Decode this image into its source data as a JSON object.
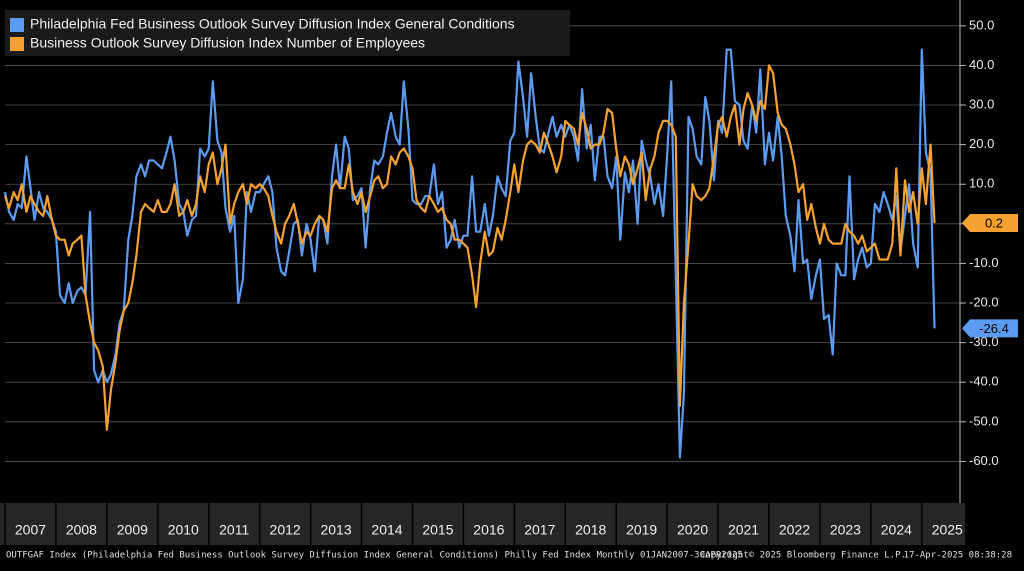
{
  "chart_data": {
    "type": "line",
    "x": [
      2007,
      2007.08,
      2007.17,
      2007.25,
      2007.33,
      2007.42,
      2007.5,
      2007.58,
      2007.67,
      2007.75,
      2007.83,
      2007.92,
      2008,
      2008.08,
      2008.17,
      2008.25,
      2008.33,
      2008.42,
      2008.5,
      2008.58,
      2008.67,
      2008.75,
      2008.83,
      2008.92,
      2009,
      2009.08,
      2009.17,
      2009.25,
      2009.33,
      2009.42,
      2009.5,
      2009.58,
      2009.67,
      2009.75,
      2009.83,
      2009.92,
      2010,
      2010.08,
      2010.17,
      2010.25,
      2010.33,
      2010.42,
      2010.5,
      2010.58,
      2010.67,
      2010.75,
      2010.83,
      2010.92,
      2011,
      2011.08,
      2011.17,
      2011.25,
      2011.33,
      2011.42,
      2011.5,
      2011.58,
      2011.67,
      2011.75,
      2011.83,
      2011.92,
      2012,
      2012.08,
      2012.17,
      2012.25,
      2012.33,
      2012.42,
      2012.5,
      2012.58,
      2012.67,
      2012.75,
      2012.83,
      2012.92,
      2013,
      2013.08,
      2013.17,
      2013.25,
      2013.33,
      2013.42,
      2013.5,
      2013.58,
      2013.67,
      2013.75,
      2013.83,
      2013.92,
      2014,
      2014.08,
      2014.17,
      2014.25,
      2014.33,
      2014.42,
      2014.5,
      2014.58,
      2014.67,
      2014.75,
      2014.83,
      2014.92,
      2015,
      2015.08,
      2015.17,
      2015.25,
      2015.33,
      2015.42,
      2015.5,
      2015.58,
      2015.67,
      2015.75,
      2015.83,
      2015.92,
      2016,
      2016.08,
      2016.17,
      2016.25,
      2016.33,
      2016.42,
      2016.5,
      2016.58,
      2016.67,
      2016.75,
      2016.83,
      2016.92,
      2017,
      2017.08,
      2017.17,
      2017.25,
      2017.33,
      2017.42,
      2017.5,
      2017.58,
      2017.67,
      2017.75,
      2017.83,
      2017.92,
      2018,
      2018.08,
      2018.17,
      2018.25,
      2018.33,
      2018.42,
      2018.5,
      2018.58,
      2018.67,
      2018.75,
      2018.83,
      2018.92,
      2019,
      2019.08,
      2019.17,
      2019.25,
      2019.33,
      2019.42,
      2019.5,
      2019.58,
      2019.67,
      2019.75,
      2019.83,
      2019.92,
      2020,
      2020.08,
      2020.17,
      2020.25,
      2020.33,
      2020.42,
      2020.5,
      2020.58,
      2020.67,
      2020.75,
      2020.83,
      2020.92,
      2021,
      2021.08,
      2021.17,
      2021.25,
      2021.33,
      2021.42,
      2021.5,
      2021.58,
      2021.67,
      2021.75,
      2021.83,
      2021.92,
      2022,
      2022.08,
      2022.17,
      2022.25,
      2022.33,
      2022.42,
      2022.5,
      2022.58,
      2022.67,
      2022.75,
      2022.83,
      2022.92,
      2023,
      2023.08,
      2023.17,
      2023.25,
      2023.33,
      2023.42,
      2023.5,
      2023.58,
      2023.67,
      2023.75,
      2023.83,
      2023.92,
      2024,
      2024.08,
      2024.17,
      2024.25,
      2024.33,
      2024.42,
      2024.5,
      2024.58,
      2024.67,
      2024.75,
      2024.83,
      2024.92,
      2025,
      2025.08,
      2025.17,
      2025.25
    ],
    "series": [
      {
        "name": "Philadelphia Fed Business Outlook Survey Diffusion Index General Conditions",
        "color": "#5b9cf2",
        "values": [
          8,
          3,
          1,
          5,
          4,
          17,
          9,
          1,
          8,
          4,
          3,
          1,
          -2,
          -18,
          -20,
          -15,
          -20,
          -17,
          -16,
          -18,
          3,
          -37,
          -40,
          -37,
          -40,
          -38,
          -33,
          -25,
          -22,
          -4,
          2,
          12,
          15,
          12,
          16,
          16,
          15,
          14,
          18,
          22,
          16,
          5,
          3,
          -3,
          1,
          2,
          19,
          17,
          19,
          36,
          21,
          18,
          4,
          -2,
          2,
          -20,
          -14,
          8,
          3,
          8,
          8,
          10,
          12,
          8,
          -6,
          -12,
          -13,
          -7,
          0,
          1,
          -8,
          0,
          -4,
          -12,
          2,
          1,
          -5,
          12,
          20,
          9,
          22,
          19,
          6,
          7,
          9,
          -6,
          9,
          16,
          15,
          17,
          23,
          28,
          22,
          20,
          36,
          24,
          6,
          5,
          5,
          7,
          7,
          15,
          5,
          8,
          -6,
          -4,
          1,
          -6,
          -3,
          -3,
          12,
          -2,
          -2,
          5,
          -3,
          2,
          12,
          9,
          7,
          21,
          23,
          41,
          32,
          22,
          38,
          27,
          19,
          18,
          23,
          27,
          22,
          25,
          22,
          25,
          22,
          16,
          34,
          19,
          25,
          11,
          22,
          22,
          12,
          9,
          17,
          -4,
          13,
          8,
          16,
          0,
          21,
          16,
          12,
          5,
          10,
          2,
          17,
          36,
          -13,
          -59,
          -43,
          27,
          24,
          17,
          15,
          32,
          26,
          11,
          26,
          23,
          44,
          44,
          31,
          30,
          21,
          19,
          30,
          23,
          39,
          15,
          23,
          16,
          27,
          17,
          2,
          -3,
          -12,
          6,
          -10,
          -9,
          -19,
          -13,
          -9,
          -24,
          -23,
          -33,
          -10,
          -13,
          -13,
          12,
          -14,
          -9,
          -6,
          -11,
          -10,
          5,
          3,
          8,
          5,
          1,
          7,
          -7,
          2,
          10,
          -5,
          -11,
          44,
          18,
          13,
          -26.4
        ]
      },
      {
        "name": "Business Outlook Survey Diffusion Index Number of Employees",
        "color": "#f5a230",
        "values": [
          7,
          4,
          8,
          6,
          10,
          3,
          7,
          5,
          3,
          2,
          7,
          1,
          -3,
          -4,
          -4,
          -8,
          -5,
          -4,
          -3,
          -18,
          -25,
          -30,
          -32,
          -36,
          -52,
          -42,
          -35,
          -27,
          -22,
          -20,
          -15,
          -8,
          3,
          5,
          4,
          3,
          6,
          3,
          3,
          5,
          10,
          2,
          3,
          6,
          2,
          5,
          12,
          8,
          15,
          18,
          10,
          14,
          20,
          0,
          5,
          8,
          10,
          5,
          10,
          9,
          10,
          9,
          7,
          2,
          -2,
          -5,
          0,
          2,
          5,
          0,
          -5,
          -2,
          -3,
          0,
          2,
          1,
          -2,
          9,
          11,
          9,
          9,
          15,
          8,
          5,
          8,
          3,
          7,
          11,
          12,
          9,
          10,
          17,
          15,
          18,
          19,
          17,
          14,
          6,
          4,
          3,
          7,
          5,
          3,
          4,
          1,
          0,
          -4,
          -4,
          -5,
          -6,
          -13,
          -21,
          -10,
          -2,
          -8,
          -7,
          -1,
          -4,
          1,
          8,
          15,
          8,
          16,
          20,
          21,
          20,
          18,
          23,
          20,
          17,
          13,
          17,
          26,
          25,
          24,
          20,
          28,
          24,
          19,
          20,
          20,
          23,
          29,
          28,
          19,
          12,
          17,
          15,
          10,
          14,
          18,
          6,
          14,
          17,
          23,
          26,
          26,
          25,
          22,
          -46,
          -20,
          -5,
          10,
          7,
          6,
          7,
          9,
          17,
          25,
          27,
          22,
          27,
          30,
          20,
          29,
          33,
          30,
          26,
          31,
          29,
          40,
          38,
          28,
          25,
          24,
          20,
          15,
          8,
          10,
          1,
          5,
          -1,
          -5,
          0,
          -4,
          -5,
          -5,
          -5,
          0,
          -2,
          -3,
          -5,
          -3,
          -7,
          -6,
          -5,
          -9,
          -9,
          -9,
          -5,
          14,
          -8,
          11,
          3,
          8,
          0,
          14,
          5,
          20,
          0.2
        ]
      }
    ],
    "xlim": [
      2007,
      2025.75
    ],
    "xticks": [
      2007,
      2008,
      2009,
      2010,
      2011,
      2012,
      2013,
      2014,
      2015,
      2016,
      2017,
      2018,
      2019,
      2020,
      2021,
      2022,
      2023,
      2024,
      2025
    ],
    "ylim": [
      -70.5,
      54.5
    ],
    "yticks": [
      {
        "value": 50,
        "label": "50.0"
      },
      {
        "value": 40,
        "label": "40.0"
      },
      {
        "value": 30,
        "label": "30.0"
      },
      {
        "value": 20,
        "label": "20.0"
      },
      {
        "value": 10,
        "label": "10.0"
      },
      {
        "value": 0,
        "label": "0.0"
      },
      {
        "value": -10,
        "label": "-10.0"
      },
      {
        "value": -20,
        "label": "-20.0"
      },
      {
        "value": -30,
        "label": "-30.0"
      },
      {
        "value": -40,
        "label": "-40.0"
      },
      {
        "value": -50,
        "label": "-50.0"
      },
      {
        "value": -60,
        "label": "-60.0"
      }
    ],
    "grid": true,
    "legend": "top-left",
    "footer": "OUTFGAF Index (Philadelphia Fed Business Outlook Survey Diffusion Index General Conditions) Philly Fed Index  Monthly 01JAN2007-30APR2025",
    "copyright": "Copyright© 2025 Bloomberg Finance L.P.",
    "timestamp": "17-Apr-2025 08:38:28"
  }
}
